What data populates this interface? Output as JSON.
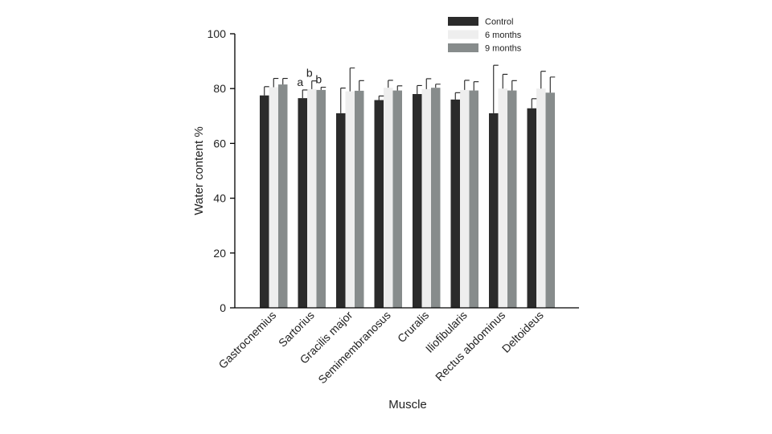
{
  "chart_data": {
    "type": "bar",
    "title": "",
    "xlabel": "Muscle",
    "ylabel": "Water content %",
    "ylim": [
      0,
      100
    ],
    "yticks": [
      "0",
      "20",
      "40",
      "60",
      "80",
      "100"
    ],
    "grid": false,
    "legend_position": "top-right",
    "categories": [
      "Gastrocnemius",
      "Sartorius",
      "Gracilis major",
      "Semimembranosus",
      "Cruralis",
      "Iliofibularis",
      "Rectus abdominus",
      "Deltoideus"
    ],
    "series": [
      {
        "name": "Control",
        "color": "#2b2b2b",
        "values": [
          77.5,
          76.5,
          71,
          75.8,
          78,
          76,
          71,
          72.8
        ],
        "errors": [
          3.2,
          3.0,
          9.2,
          1.5,
          3.1,
          2.5,
          17.5,
          3.5
        ]
      },
      {
        "name": "6 months",
        "color": "#eeeeee",
        "values": [
          80.5,
          79.8,
          79,
          80.3,
          79.8,
          79.5,
          80,
          80
        ],
        "errors": [
          3.2,
          3.0,
          8.5,
          2.7,
          3.8,
          3.5,
          5.2,
          6.3
        ]
      },
      {
        "name": "9 months",
        "color": "#878c8c",
        "values": [
          81.5,
          79.5,
          79.2,
          79.3,
          80.3,
          79.3,
          79.3,
          78.5
        ],
        "errors": [
          2.2,
          1.0,
          3.7,
          1.7,
          1.3,
          3.2,
          3.6,
          5.7
        ]
      }
    ],
    "annotations": [
      {
        "category": "Sartorius",
        "series": "Control",
        "text": "a"
      },
      {
        "category": "Sartorius",
        "series": "6 months",
        "text": "b"
      },
      {
        "category": "Sartorius",
        "series": "9 months",
        "text": "b"
      }
    ]
  }
}
